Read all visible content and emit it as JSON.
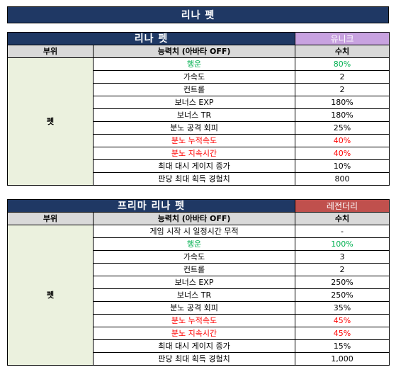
{
  "title": "리나 펫",
  "headers": {
    "slot": "부위",
    "stat": "능력치 (아바타 OFF)",
    "value": "수치"
  },
  "slot_label": "펫",
  "colors": {
    "header_bg": "#1f3864",
    "unique": "#c8a2e0",
    "legendary": "#c0504d",
    "green_text": "#00b050",
    "red_text": "#ff0000"
  },
  "tables": [
    {
      "name": "리나 펫",
      "grade": "유니크",
      "rows": [
        {
          "stat": "행운",
          "value": "80%",
          "color": "green"
        },
        {
          "stat": "가속도",
          "value": "2",
          "color": ""
        },
        {
          "stat": "컨트롤",
          "value": "2",
          "color": ""
        },
        {
          "stat": "보너스 EXP",
          "value": "180%",
          "color": ""
        },
        {
          "stat": "보너스 TR",
          "value": "180%",
          "color": ""
        },
        {
          "stat": "분노 공격 회피",
          "value": "25%",
          "color": ""
        },
        {
          "stat": "분노 누적속도",
          "value": "40%",
          "color": "red"
        },
        {
          "stat": "분노 지속시간",
          "value": "40%",
          "color": "red"
        },
        {
          "stat": "최대 대시 게이지 증가",
          "value": "10%",
          "color": ""
        },
        {
          "stat": "판당 최대 획득 경험치",
          "value": "800",
          "color": ""
        }
      ]
    },
    {
      "name": "프리마 리나 펫",
      "grade": "레전더리",
      "rows": [
        {
          "stat": "게임 시작 시 일정시간 무적",
          "value": "-",
          "color": ""
        },
        {
          "stat": "행운",
          "value": "100%",
          "color": "green"
        },
        {
          "stat": "가속도",
          "value": "3",
          "color": ""
        },
        {
          "stat": "컨트롤",
          "value": "2",
          "color": ""
        },
        {
          "stat": "보너스 EXP",
          "value": "250%",
          "color": ""
        },
        {
          "stat": "보너스 TR",
          "value": "250%",
          "color": ""
        },
        {
          "stat": "분노 공격 회피",
          "value": "35%",
          "color": ""
        },
        {
          "stat": "분노 누적속도",
          "value": "45%",
          "color": "red"
        },
        {
          "stat": "분노 지속시간",
          "value": "45%",
          "color": "red"
        },
        {
          "stat": "최대 대시 게이지 증가",
          "value": "15%",
          "color": ""
        },
        {
          "stat": "판당 최대 획득 경험치",
          "value": "1,000",
          "color": ""
        }
      ]
    }
  ]
}
